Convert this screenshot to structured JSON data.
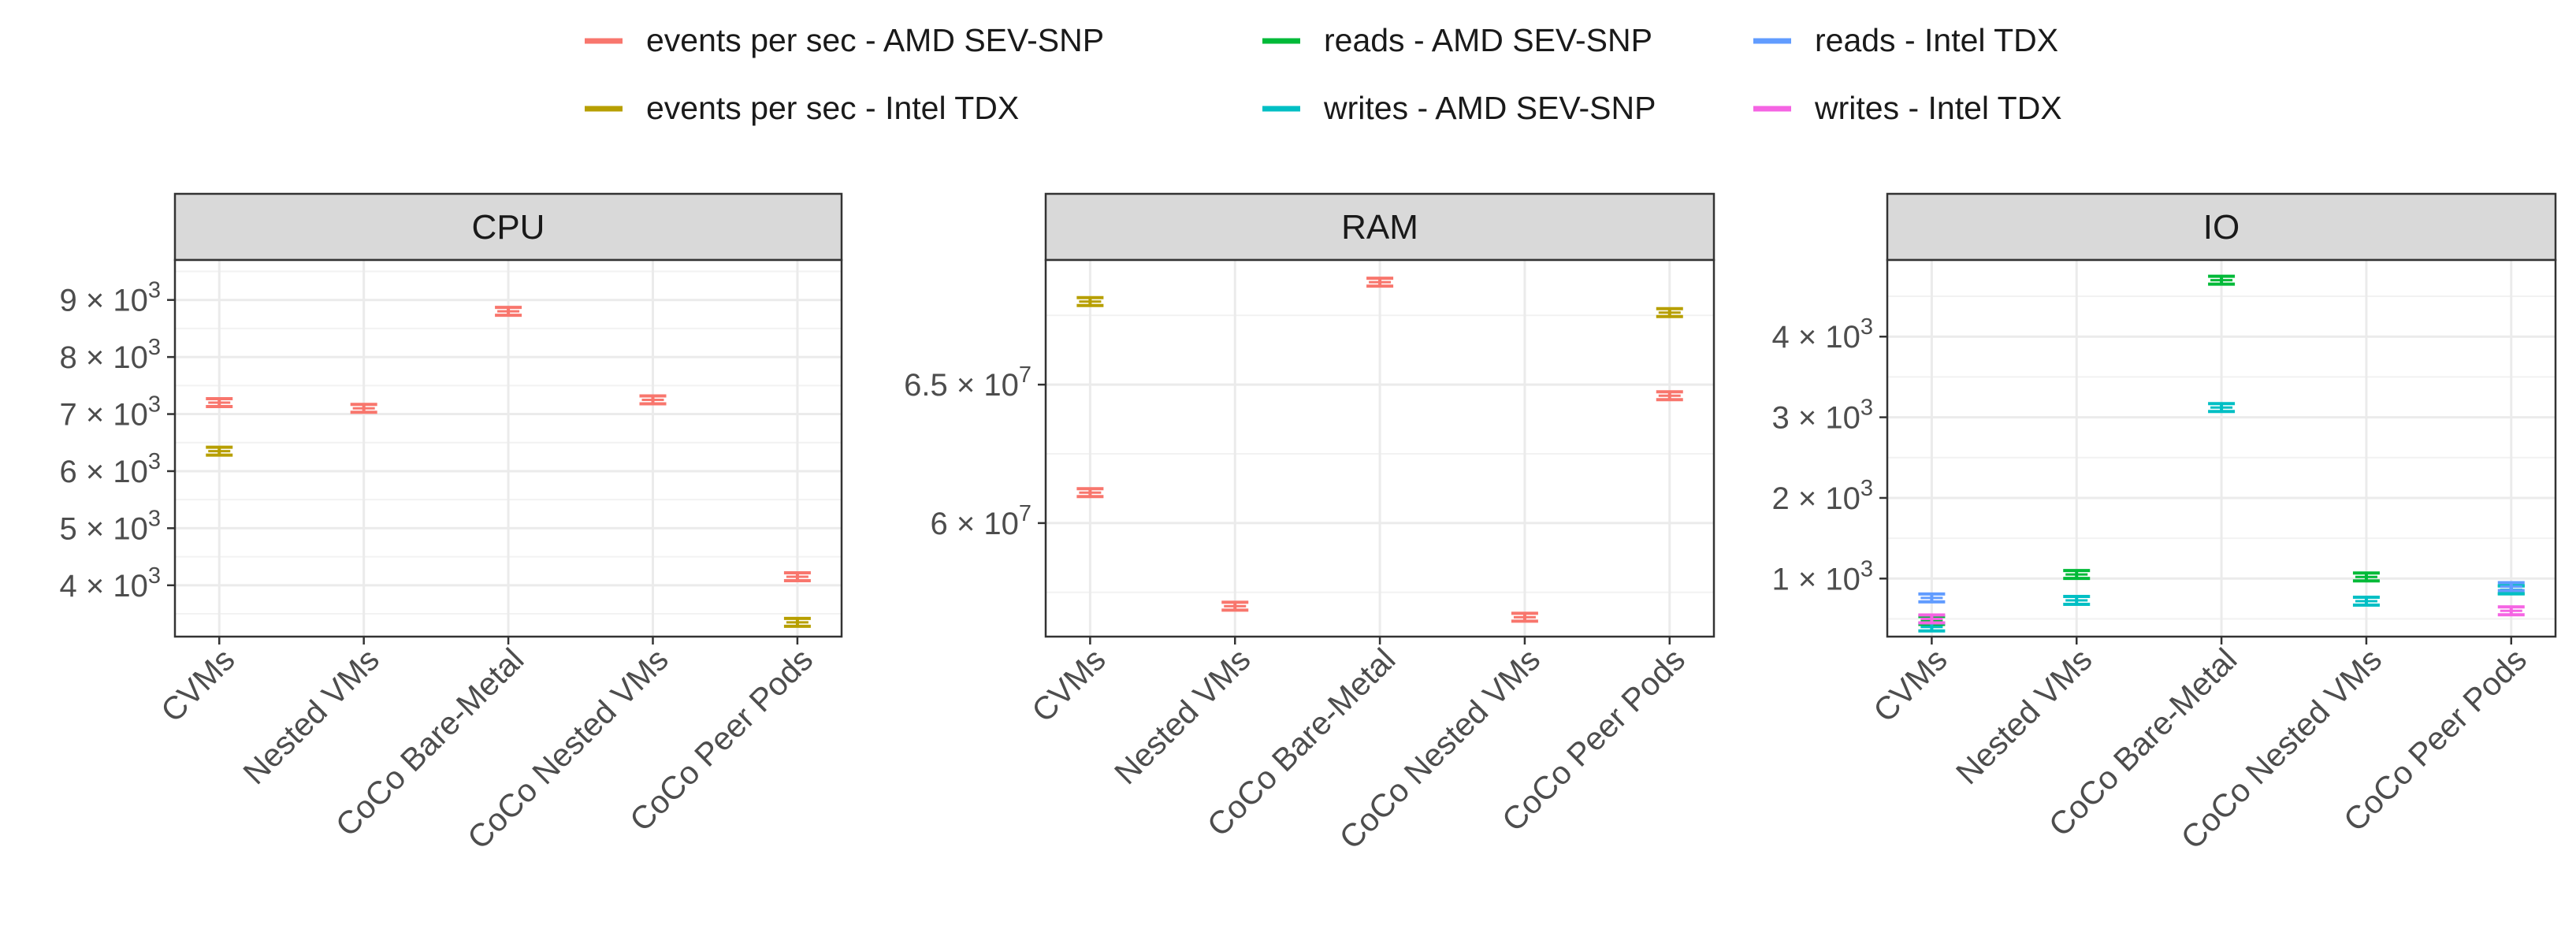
{
  "legend": [
    {
      "label": "events per sec - AMD SEV-SNP",
      "color": "#F8766D"
    },
    {
      "label": "reads - AMD SEV-SNP",
      "color": "#00BA38"
    },
    {
      "label": "reads - Intel TDX",
      "color": "#619CFF"
    },
    {
      "label": "events per sec - Intel TDX",
      "color": "#B79F00"
    },
    {
      "label": "writes - AMD SEV-SNP",
      "color": "#00BFC4"
    },
    {
      "label": "writes - Intel TDX",
      "color": "#F564E3"
    }
  ],
  "chart_data": [
    {
      "type": "scatter",
      "title": "CPU",
      "categories": [
        "CVMs",
        "Nested VMs",
        "CoCo Bare-Metal",
        "CoCo Nested VMs",
        "CoCo Peer Pods"
      ],
      "ylim": [
        3100,
        9700
      ],
      "yticks": [
        4000,
        5000,
        6000,
        7000,
        8000,
        9000
      ],
      "ytick_labels": [
        {
          "mant": "4",
          "exp": "3"
        },
        {
          "mant": "5",
          "exp": "3"
        },
        {
          "mant": "6",
          "exp": "3"
        },
        {
          "mant": "7",
          "exp": "3"
        },
        {
          "mant": "8",
          "exp": "3"
        },
        {
          "mant": "9",
          "exp": "3"
        }
      ],
      "series": [
        {
          "name": "events per sec - AMD SEV-SNP",
          "color": "#F8766D",
          "values": [
            7200,
            7100,
            8800,
            7250,
            4150
          ]
        },
        {
          "name": "events per sec - Intel TDX",
          "color": "#B79F00",
          "values": [
            6350,
            null,
            null,
            null,
            3350
          ]
        }
      ]
    },
    {
      "type": "scatter",
      "title": "RAM",
      "categories": [
        "CVMs",
        "Nested VMs",
        "CoCo Bare-Metal",
        "CoCo Nested VMs",
        "CoCo Peer Pods"
      ],
      "ylim": [
        55900000,
        69500000
      ],
      "yticks": [
        60000000,
        65000000
      ],
      "ytick_labels": [
        {
          "mant": "6",
          "exp": "7"
        },
        {
          "mant": "6.5",
          "exp": "7"
        }
      ],
      "series": [
        {
          "name": "events per sec - AMD SEV-SNP",
          "color": "#F8766D",
          "values": [
            61100000,
            57000000,
            68700000,
            56600000,
            64600000
          ]
        },
        {
          "name": "events per sec - Intel TDX",
          "color": "#B79F00",
          "values": [
            68000000,
            null,
            null,
            null,
            67600000
          ]
        }
      ]
    },
    {
      "type": "scatter",
      "title": "IO",
      "categories": [
        "CVMs",
        "Nested VMs",
        "CoCo Bare-Metal",
        "CoCo Nested VMs",
        "CoCo Peer Pods"
      ],
      "ylim": [
        280,
        4950
      ],
      "yticks": [
        1000,
        2000,
        3000,
        4000
      ],
      "ytick_labels": [
        {
          "mant": "1",
          "exp": "3"
        },
        {
          "mant": "2",
          "exp": "3"
        },
        {
          "mant": "3",
          "exp": "3"
        },
        {
          "mant": "4",
          "exp": "3"
        }
      ],
      "series": [
        {
          "name": "reads - AMD SEV-SNP",
          "color": "#00BA38",
          "values": [
            480,
            1050,
            4700,
            1020,
            860
          ]
        },
        {
          "name": "writes - AMD SEV-SNP",
          "color": "#00BFC4",
          "values": [
            400,
            730,
            3120,
            720,
            860
          ]
        },
        {
          "name": "reads - Intel TDX",
          "color": "#619CFF",
          "values": [
            760,
            null,
            null,
            null,
            900
          ]
        },
        {
          "name": "writes - Intel TDX",
          "color": "#F564E3",
          "values": [
            500,
            null,
            null,
            null,
            600
          ]
        }
      ]
    }
  ]
}
